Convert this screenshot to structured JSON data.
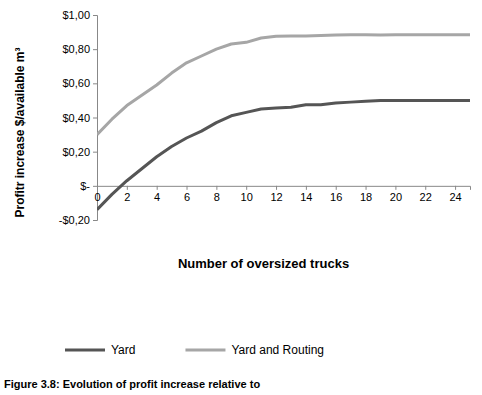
{
  "chart_data": {
    "type": "line",
    "title": "Figure 3.8: Evolution of profit increase relative to",
    "x_label": "Number of oversized trucks",
    "y_label": "Profitr increase $/available m³",
    "x": [
      0,
      1,
      2,
      3,
      4,
      5,
      6,
      7,
      8,
      9,
      10,
      11,
      12,
      13,
      14,
      15,
      16,
      17,
      18,
      19,
      20,
      21,
      22,
      23,
      24,
      25
    ],
    "series": [
      {
        "name": "Yard",
        "color": "#555555",
        "values": [
          -0.14,
          -0.05,
          0.03,
          0.1,
          0.17,
          0.23,
          0.28,
          0.32,
          0.37,
          0.41,
          0.43,
          0.45,
          0.455,
          0.46,
          0.475,
          0.475,
          0.485,
          0.49,
          0.495,
          0.5,
          0.5,
          0.5,
          0.5,
          0.5,
          0.5,
          0.5
        ]
      },
      {
        "name": "Yard and Routing",
        "color": "#a6a6a6",
        "values": [
          0.3,
          0.39,
          0.47,
          0.53,
          0.59,
          0.66,
          0.72,
          0.76,
          0.8,
          0.83,
          0.84,
          0.865,
          0.875,
          0.877,
          0.877,
          0.88,
          0.883,
          0.885,
          0.885,
          0.883,
          0.885,
          0.885,
          0.885,
          0.885,
          0.885,
          0.885
        ]
      }
    ],
    "xlim": [
      0,
      25
    ],
    "xticks": [
      0,
      2,
      4,
      6,
      8,
      10,
      12,
      14,
      16,
      18,
      20,
      22,
      24
    ],
    "ylim": [
      -0.2,
      1.0
    ],
    "yticks": [
      {
        "value": -0.2,
        "label": "-$0,20"
      },
      {
        "value": 0,
        "label": "$-"
      },
      {
        "value": 0.2,
        "label": "$0,20"
      },
      {
        "value": 0.4,
        "label": "$0,40"
      },
      {
        "value": 0.6,
        "label": "$0,60"
      },
      {
        "value": 0.8,
        "label": "$0,80"
      },
      {
        "value": 1.0,
        "label": "$1,00"
      }
    ],
    "grid": false,
    "legend": "bottom"
  }
}
